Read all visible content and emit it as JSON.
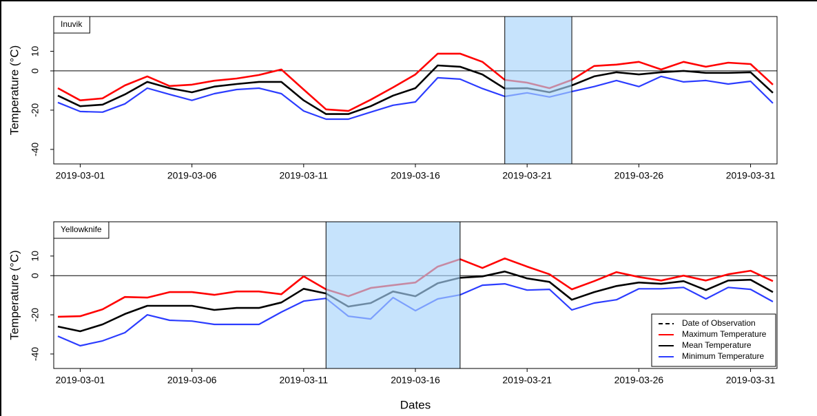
{
  "chart_data": [
    {
      "type": "line",
      "label": "Inuvik",
      "ylabel": "Temperature (°C)",
      "x": [
        "2019-02-28",
        "2019-03-01",
        "2019-03-02",
        "2019-03-03",
        "2019-03-04",
        "2019-03-05",
        "2019-03-06",
        "2019-03-07",
        "2019-03-08",
        "2019-03-09",
        "2019-03-10",
        "2019-03-11",
        "2019-03-12",
        "2019-03-13",
        "2019-03-14",
        "2019-03-15",
        "2019-03-16",
        "2019-03-17",
        "2019-03-18",
        "2019-03-19",
        "2019-03-20",
        "2019-03-21",
        "2019-03-22",
        "2019-03-23",
        "2019-03-24",
        "2019-03-25",
        "2019-03-26",
        "2019-03-27",
        "2019-03-28",
        "2019-03-29",
        "2019-03-30",
        "2019-03-31",
        "2019-04-01"
      ],
      "series": [
        {
          "color": "#ff0000",
          "values": [
            -8.8,
            -15,
            -14,
            -7.4,
            -2.8,
            -7.7,
            -7,
            -5,
            -3.9,
            -2.1,
            0.7,
            -9.5,
            -19.6,
            -20.4,
            -14.7,
            -8.4,
            -1.8,
            8.8,
            8.8,
            4.6,
            -4.6,
            -6,
            -8.8,
            -4.6,
            2.5,
            3.2,
            4.6,
            0.7,
            4.6,
            2.1,
            4.2,
            3.5,
            -7
          ]
        },
        {
          "color": "#000000",
          "values": [
            -12.6,
            -18,
            -17.2,
            -12,
            -5.6,
            -8.8,
            -10.9,
            -8,
            -6.7,
            -5.6,
            -5.6,
            -15,
            -22,
            -22,
            -18,
            -12.6,
            -8.8,
            2.8,
            2.1,
            -1.8,
            -9,
            -8.8,
            -10.9,
            -7.4,
            -2.8,
            -0.7,
            -1.8,
            -0.7,
            0,
            -1,
            -1,
            -0.7,
            -11.2
          ]
        },
        {
          "color": "#2b3cff",
          "values": [
            -16.1,
            -20.7,
            -21,
            -16.8,
            -8.8,
            -12,
            -15,
            -11.6,
            -9.5,
            -8.8,
            -11.6,
            -20.4,
            -24.6,
            -24.6,
            -21,
            -17.5,
            -15.8,
            -3.5,
            -4.2,
            -9,
            -13,
            -11.2,
            -13.3,
            -10.5,
            -8,
            -4.9,
            -8,
            -2.8,
            -5.6,
            -4.9,
            -6.7,
            -5.3,
            -16.5
          ]
        }
      ],
      "highlight": [
        "2019-03-20",
        "2019-03-23"
      ],
      "highlight_color": "#a8d4fb",
      "hline": 0,
      "xlim": [
        "2019-02-28",
        "2019-04-01"
      ],
      "xticks": [
        "2019-03-01",
        "2019-03-06",
        "2019-03-11",
        "2019-03-16",
        "2019-03-21",
        "2019-03-26",
        "2019-03-31"
      ],
      "ylim": [
        -47.4,
        27.7
      ],
      "yticks": [
        -40,
        -20,
        0,
        10
      ]
    },
    {
      "type": "line",
      "label": "Yellowknife",
      "ylabel": "Temperature (°C)",
      "xlabel": "Dates",
      "x": [
        "2019-02-28",
        "2019-03-01",
        "2019-03-02",
        "2019-03-03",
        "2019-03-04",
        "2019-03-05",
        "2019-03-06",
        "2019-03-07",
        "2019-03-08",
        "2019-03-09",
        "2019-03-10",
        "2019-03-11",
        "2019-03-12",
        "2019-03-13",
        "2019-03-14",
        "2019-03-15",
        "2019-03-16",
        "2019-03-17",
        "2019-03-18",
        "2019-03-19",
        "2019-03-20",
        "2019-03-21",
        "2019-03-22",
        "2019-03-23",
        "2019-03-24",
        "2019-03-25",
        "2019-03-26",
        "2019-03-27",
        "2019-03-28",
        "2019-03-29",
        "2019-03-30",
        "2019-03-31",
        "2019-04-01"
      ],
      "series": [
        {
          "name": "Maximum Temperature",
          "color": "#ff0000",
          "values": [
            -21,
            -20.7,
            -17.2,
            -10.9,
            -11.2,
            -8.4,
            -8.4,
            -9.8,
            -8.1,
            -8.1,
            -9.5,
            -0.4,
            -7,
            -10.5,
            -6.3,
            -4.9,
            -3.5,
            4.6,
            8.4,
            3.9,
            8.8,
            4.6,
            0.7,
            -7,
            -2.8,
            1.8,
            -0.7,
            -2.5,
            0,
            -2.5,
            0.7,
            2.5,
            -2.8
          ]
        },
        {
          "name": "Mean Temperature",
          "color": "#000000",
          "values": [
            -26,
            -28.4,
            -24.9,
            -19.6,
            -15.4,
            -15.4,
            -15.4,
            -17.5,
            -16.5,
            -16.5,
            -13.7,
            -6.7,
            -9.1,
            -15.8,
            -14,
            -8.1,
            -10.5,
            -3.9,
            -1.1,
            -0.4,
            2.1,
            -1.4,
            -3.2,
            -12.3,
            -8.4,
            -5.3,
            -3.5,
            -4.2,
            -2.8,
            -7.4,
            -2.5,
            -2.1,
            -8.4
          ]
        },
        {
          "name": "Minimum Temperature",
          "color": "#2b3cff",
          "values": [
            -30.9,
            -35.8,
            -33.3,
            -29.1,
            -20,
            -22.8,
            -23.2,
            -24.9,
            -24.9,
            -24.9,
            -18.6,
            -13,
            -11.6,
            -20.7,
            -22.1,
            -11.2,
            -17.9,
            -11.9,
            -9.8,
            -4.9,
            -4.2,
            -7.4,
            -7,
            -17.5,
            -14,
            -12.3,
            -6.7,
            -6.7,
            -6,
            -11.9,
            -6,
            -7,
            -13.3
          ]
        }
      ],
      "highlight": [
        "2019-03-12",
        "2019-03-18"
      ],
      "highlight_color": "#a8d4fb",
      "highlight_label": "Date of Observation",
      "hline": 0,
      "xlim": [
        "2019-02-28",
        "2019-04-01"
      ],
      "xticks": [
        "2019-03-01",
        "2019-03-06",
        "2019-03-11",
        "2019-03-16",
        "2019-03-21",
        "2019-03-26",
        "2019-03-31"
      ],
      "ylim": [
        -47.4,
        27.5
      ],
      "yticks": [
        -40,
        -20,
        0,
        10
      ],
      "legend": "bottomright"
    }
  ]
}
